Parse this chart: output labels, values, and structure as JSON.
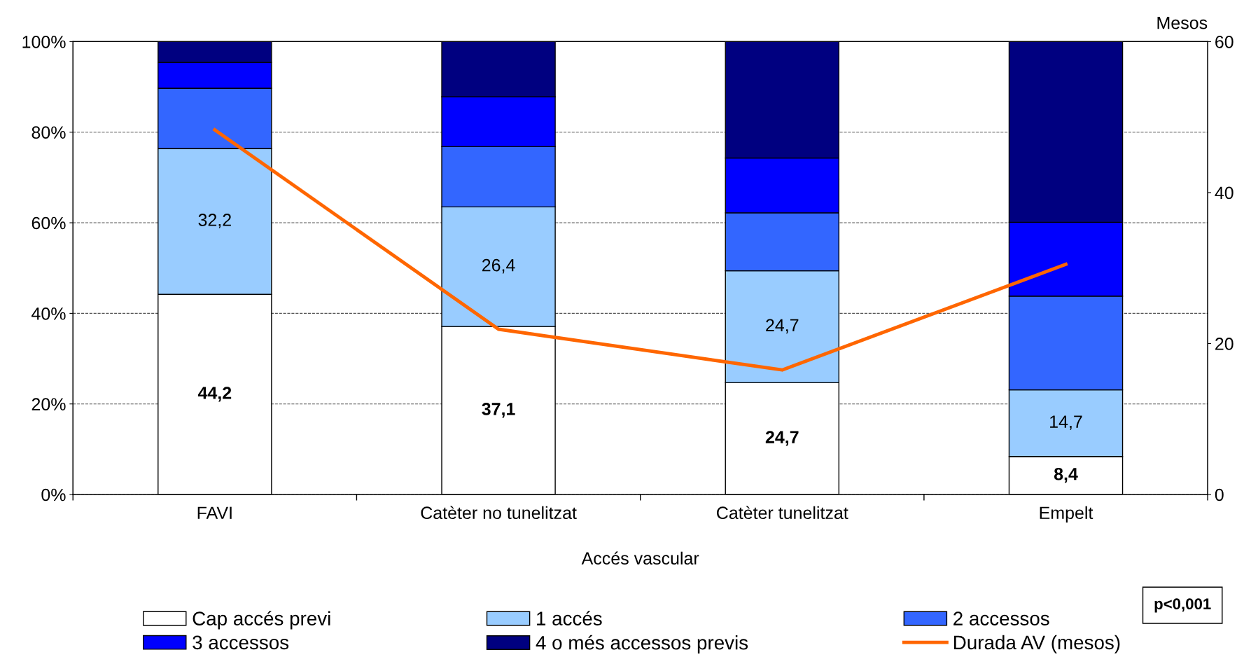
{
  "chart_data": {
    "type": "bar",
    "stacked": true,
    "xlabel": "Accés vascular",
    "y2label": "Mesos",
    "categories": [
      "FAVI",
      "Catèter no tunelitzat",
      "Catèter tunelitzat",
      "Empelt"
    ],
    "series": [
      {
        "name": "Cap accés previ",
        "color": "#ffffff",
        "values": [
          44.2,
          37.1,
          24.7,
          8.4
        ],
        "value_labels": [
          "44,2",
          "37,1",
          "24,7",
          "8,4"
        ]
      },
      {
        "name": "1 accés",
        "color": "#99ccff",
        "values": [
          32.2,
          26.4,
          24.7,
          14.7
        ],
        "value_labels": [
          "32,2",
          "26,4",
          "24,7",
          "14,7"
        ]
      },
      {
        "name": "2 accessos",
        "color": "#3366ff",
        "values": [
          13.3,
          13.3,
          12.8,
          20.7
        ]
      },
      {
        "name": "3 accessos",
        "color": "#0000ff",
        "values": [
          5.7,
          11.0,
          12.1,
          16.3
        ]
      },
      {
        "name": "4 o més accessos previs",
        "color": "#000080",
        "values": [
          4.6,
          12.2,
          25.7,
          39.9
        ]
      },
      {
        "name": "Durada AV (mesos)",
        "type": "line",
        "axis": "y2",
        "color": "#ff6600",
        "values": [
          48.3,
          21.9,
          16.5,
          30.5
        ]
      }
    ],
    "ylim": [
      0,
      100
    ],
    "yticks": [
      {
        "value": 0,
        "label": "0%"
      },
      {
        "value": 20,
        "label": "20%"
      },
      {
        "value": 40,
        "label": "40%"
      },
      {
        "value": 60,
        "label": "60%"
      },
      {
        "value": 80,
        "label": "80%"
      },
      {
        "value": 100,
        "label": "100%"
      }
    ],
    "y2lim": [
      0,
      60
    ],
    "y2ticks": [
      0,
      20,
      40,
      60
    ],
    "grid": "y",
    "legend": "bottom",
    "marker": "none",
    "line_style": "solid",
    "annotations": [
      "p<0,001"
    ]
  }
}
